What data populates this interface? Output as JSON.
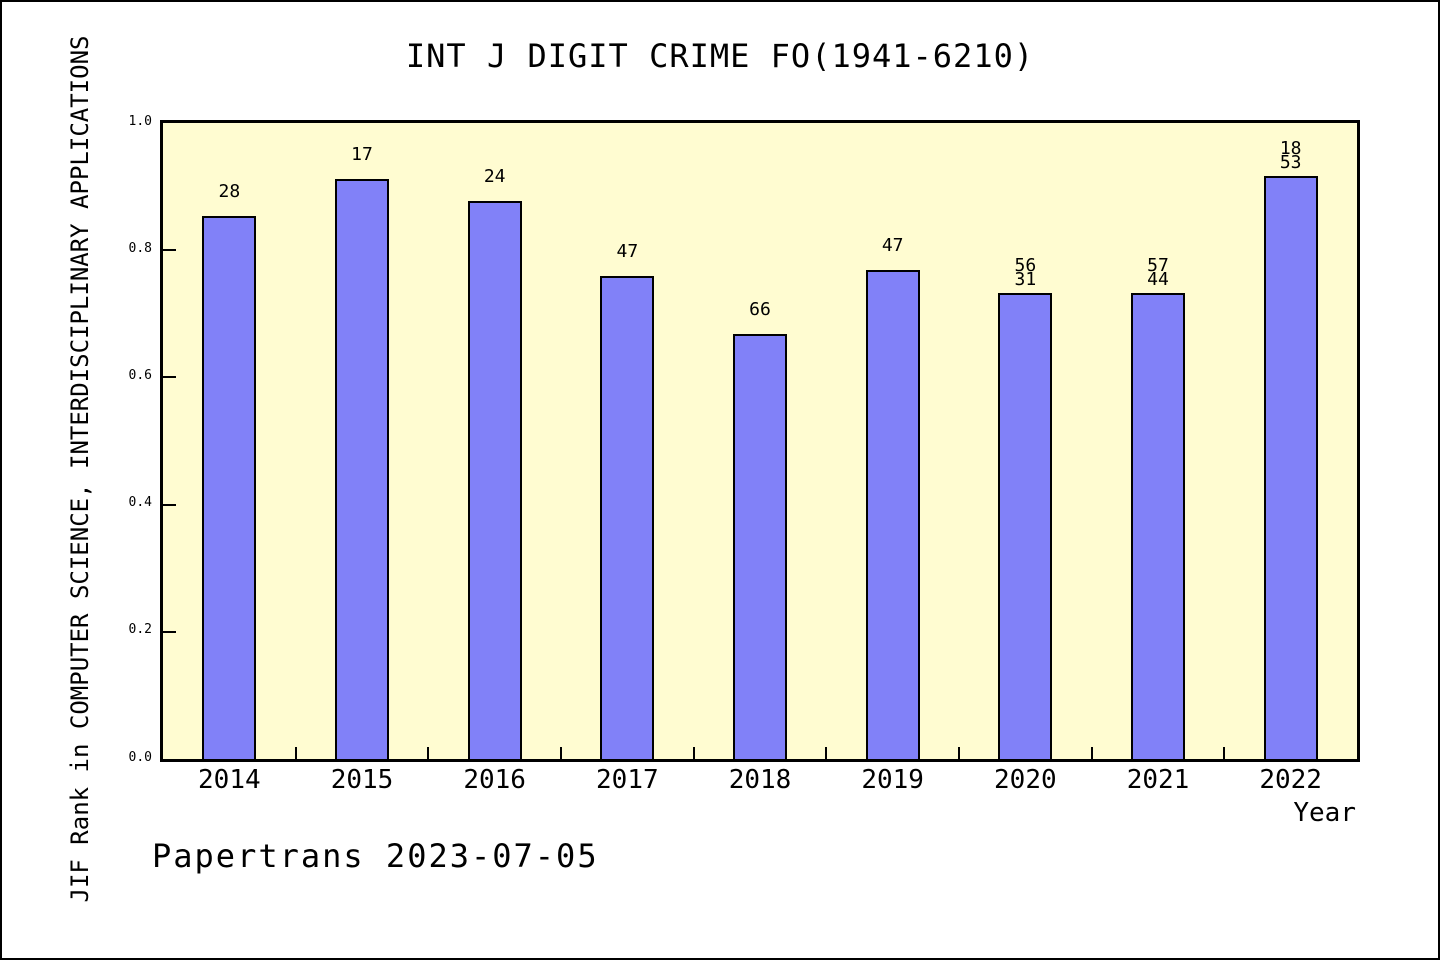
{
  "figure": {
    "watermark": "Papertrans 2023-07-05"
  },
  "chart_data": {
    "type": "bar",
    "title": "INT J DIGIT CRIME FO(1941-6210)",
    "xlabel": "Year",
    "ylabel": "JIF Rank in COMPUTER SCIENCE, INTERDISCIPLINARY APPLICATIONS",
    "categories": [
      "2014",
      "2015",
      "2016",
      "2017",
      "2018",
      "2019",
      "2020",
      "2021",
      "2022"
    ],
    "values": [
      0.854,
      0.912,
      0.877,
      0.76,
      0.669,
      0.769,
      0.732,
      0.732,
      0.916
    ],
    "bar_labels": [
      [
        "28"
      ],
      [
        "17"
      ],
      [
        "24"
      ],
      [
        "47"
      ],
      [
        "66"
      ],
      [
        "47"
      ],
      [
        "56",
        "31"
      ],
      [
        "57",
        "44"
      ],
      [
        "18",
        "53"
      ]
    ],
    "ylim": [
      0.0,
      1.0
    ],
    "yticks": [
      0.0,
      0.2,
      0.4,
      0.6,
      0.8,
      1.0
    ],
    "ytick_labels": [
      "0.0",
      "0.2",
      "0.4",
      "0.6",
      "0.8",
      "1.0"
    ],
    "grid": false,
    "legend": null,
    "bar_width_fraction": 0.41,
    "colors": {
      "bar_fill": "#8181F8",
      "bar_edge": "#000000",
      "plot_bg": "#FFFCD1",
      "figure_bg": "#FFFFFF",
      "text": "#000000"
    }
  }
}
